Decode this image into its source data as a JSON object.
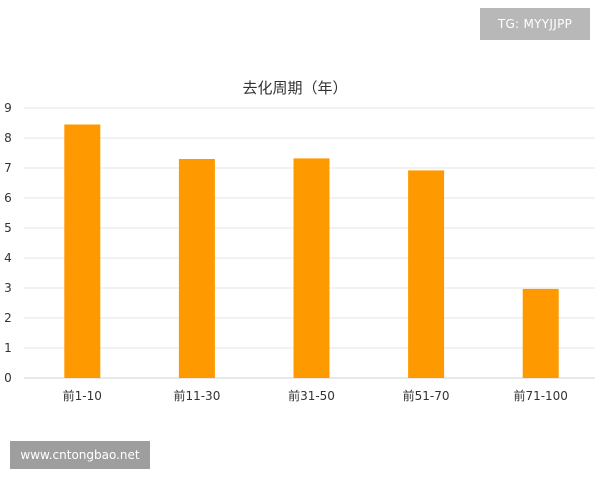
{
  "watermark_top": "TG: MYYJJPP",
  "watermark_bottom": "www.cntongbao.net",
  "colors": {
    "bar": "#ff9900",
    "grid": "#e6e6e6",
    "axis": "#d0d0d0",
    "text": "#333333"
  },
  "chart_data": {
    "type": "bar",
    "title": "去化周期（年）",
    "categories": [
      "前1-10",
      "前11-30",
      "前31-50",
      "前51-70",
      "前71-100"
    ],
    "values": [
      8.45,
      7.3,
      7.32,
      6.92,
      2.97
    ],
    "ylim": [
      0,
      9
    ],
    "yticks": [
      "0",
      "1",
      "2",
      "3",
      "4",
      "5",
      "6",
      "7",
      "8",
      "9"
    ],
    "xlabel": "",
    "ylabel": "",
    "grid": true,
    "legend": "none"
  }
}
